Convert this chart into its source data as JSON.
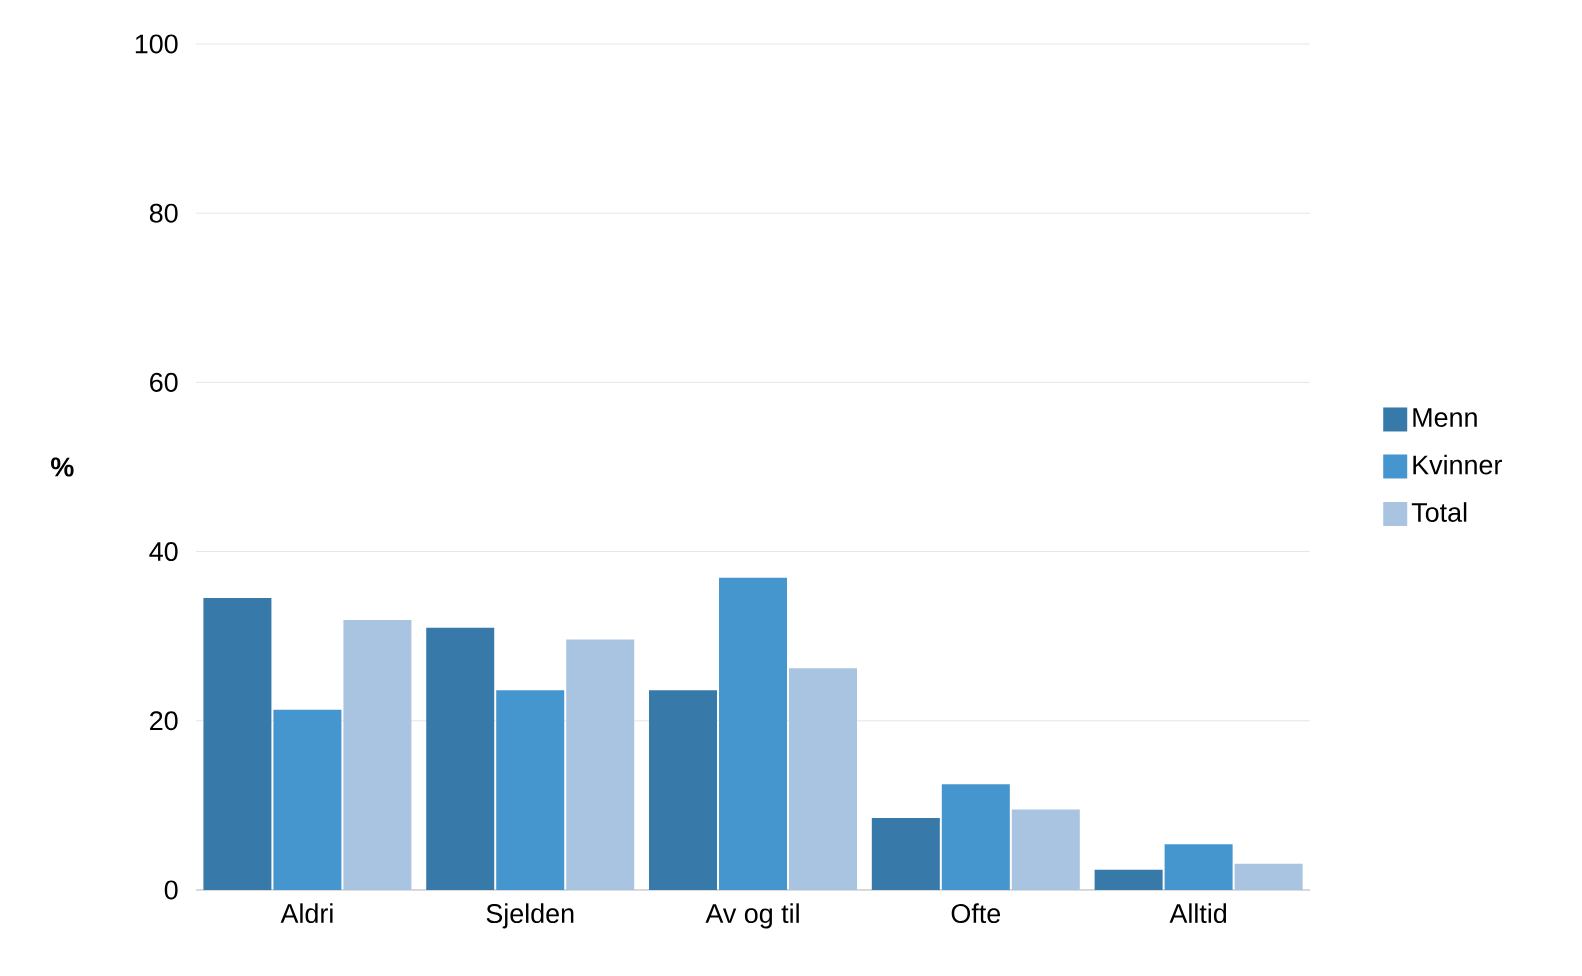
{
  "chart_data": {
    "type": "bar",
    "ylabel": "%",
    "categories": [
      "Aldri",
      "Sjelden",
      "Av og til",
      "Ofte",
      "Alltid"
    ],
    "series": [
      {
        "name": "Menn",
        "color": "#3779a8",
        "values": [
          34.5,
          31.0,
          23.6,
          8.5,
          2.4
        ]
      },
      {
        "name": "Kvinner",
        "color": "#4596cf",
        "values": [
          21.3,
          23.6,
          36.9,
          12.5,
          5.4
        ]
      },
      {
        "name": "Total",
        "color": "#a9c4e0",
        "values": [
          31.9,
          29.6,
          26.2,
          9.5,
          3.1
        ]
      }
    ],
    "ylim": [
      0,
      100
    ],
    "yticks": [
      0,
      20,
      40,
      60,
      80,
      100
    ],
    "grid": "y",
    "legend": "right"
  }
}
